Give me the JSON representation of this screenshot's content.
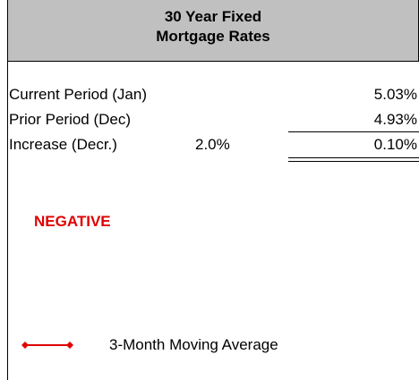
{
  "header": {
    "title": [
      "30 Year Fixed",
      "Mortgage Rates"
    ]
  },
  "table": {
    "rows": [
      [
        "Current Period (Jan)",
        "5.03%"
      ],
      [
        "Prior Period (Dec)",
        "4.93%"
      ],
      [
        "Increase (Decr.)",
        "2.0%",
        "0.10%"
      ]
    ]
  },
  "status": "NEGATIVE",
  "legend": {
    "label": "3-Month Moving Average"
  }
}
